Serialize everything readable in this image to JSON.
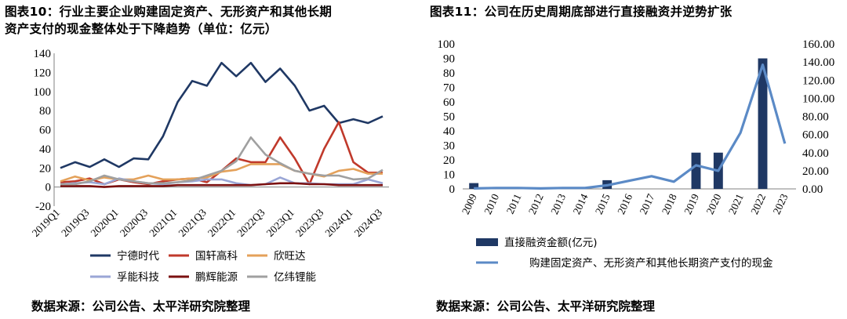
{
  "left": {
    "title_line1": "图表10：行业主要企业购建固定资产、无形资产和其他长期",
    "title_line2": "资产支付的现金整体处于下降趋势（单位：亿元）",
    "source": "数据来源：公司公告、太平洋研究院整理"
  },
  "right": {
    "title": "图表11：公司在历史周期底部进行直接融资并逆势扩张",
    "source": "数据来源：公司公告、太平洋研究院整理"
  },
  "colors": {
    "navy": "#1f3864",
    "red": "#c0392b",
    "orange": "#e4a15a",
    "lavender": "#9aa6d6",
    "darkred": "#7b1010",
    "gray": "#a0a0a0",
    "bar": "#1f3864",
    "line": "#5b8ac6"
  },
  "chart_data": [
    {
      "type": "line",
      "title": "",
      "xlabel": "",
      "ylabel": "",
      "ylim": [
        -20,
        140
      ],
      "yticks": [
        -20,
        0,
        20,
        40,
        60,
        80,
        100,
        120,
        140
      ],
      "x": [
        "2019Q1",
        "2019Q2",
        "2019Q3",
        "2019Q4",
        "2020Q1",
        "2020Q2",
        "2020Q3",
        "2020Q4",
        "2021Q1",
        "2021Q2",
        "2021Q3",
        "2021Q4",
        "2022Q1",
        "2022Q2",
        "2022Q3",
        "2022Q4",
        "2023Q1",
        "2023Q2",
        "2023Q3",
        "2023Q4",
        "2024Q1",
        "2024Q2",
        "2024Q3"
      ],
      "xtick_labels": [
        "2019Q1",
        "2019Q3",
        "2020Q1",
        "2020Q3",
        "2021Q1",
        "2021Q3",
        "2022Q1",
        "2022Q3",
        "2023Q1",
        "2023Q3",
        "2024Q1",
        "2024Q3"
      ],
      "legend_position": "bottom",
      "series": [
        {
          "name": "宁德时代",
          "color": "navy",
          "values": [
            20,
            26,
            21,
            29,
            21,
            30,
            29,
            53,
            89,
            111,
            106,
            130,
            116,
            130,
            110,
            124,
            106,
            80,
            85,
            67,
            71,
            67,
            74
          ]
        },
        {
          "name": "国轩高科",
          "color": "red",
          "values": [
            5,
            6,
            9,
            3,
            8,
            5,
            3,
            6,
            8,
            9,
            5,
            17,
            30,
            26,
            26,
            52,
            30,
            3,
            40,
            68,
            26,
            15,
            15
          ]
        },
        {
          "name": "欣旺达",
          "color": "orange",
          "values": [
            6,
            11,
            7,
            10,
            8,
            8,
            12,
            8,
            8,
            9,
            10,
            16,
            18,
            24,
            24,
            24,
            17,
            14,
            11,
            17,
            19,
            14,
            14
          ]
        },
        {
          "name": "孚能科技",
          "color": "lavender",
          "values": [
            3,
            4,
            5,
            3,
            9,
            6,
            4,
            3,
            5,
            6,
            8,
            8,
            4,
            2,
            3,
            10,
            4,
            4,
            3,
            3,
            3,
            8,
            4
          ]
        },
        {
          "name": "鹏辉能源",
          "color": "darkred",
          "values": [
            1,
            1,
            1,
            0,
            1,
            1,
            1,
            1,
            2,
            2,
            2,
            2,
            2,
            2,
            3,
            4,
            4,
            3,
            3,
            2,
            2,
            2,
            2
          ]
        },
        {
          "name": "亿纬锂能",
          "color": "gray",
          "values": [
            3,
            3,
            6,
            12,
            8,
            6,
            4,
            4,
            5,
            7,
            12,
            17,
            27,
            52,
            34,
            25,
            17,
            14,
            12,
            12,
            8,
            9,
            18
          ]
        }
      ]
    },
    {
      "type": "bar",
      "title": "",
      "categories": [
        "2009",
        "2010",
        "2011",
        "2012",
        "2013",
        "2014",
        "2015",
        "2016",
        "2017",
        "2018",
        "2019",
        "2020",
        "2021",
        "2022",
        "2023"
      ],
      "ylim_left": [
        0,
        100
      ],
      "yticks_left": [
        0,
        10,
        20,
        30,
        40,
        50,
        60,
        70,
        80,
        90,
        100
      ],
      "ylim_right": [
        0,
        160
      ],
      "yticks_right": [
        "0.00",
        "20.00",
        "40.00",
        "60.00",
        "80.00",
        "100.00",
        "120.00",
        "140.00",
        "160.00"
      ],
      "legend_position": "bottom",
      "series": [
        {
          "name": "直接融资金额(亿元)",
          "type": "bar",
          "axis": "left",
          "values": [
            4,
            0,
            0,
            0,
            0,
            0,
            6,
            0,
            0,
            0,
            25,
            25,
            0,
            90,
            0
          ]
        },
        {
          "name": "购建固定资产、无形资产和其他长期资产支付的现金",
          "type": "line",
          "axis": "right",
          "values": [
            0.5,
            1.0,
            1.0,
            0.5,
            1.0,
            1.0,
            4.0,
            9.0,
            14.0,
            8.0,
            26.0,
            20.0,
            62.0,
            137.0,
            50.0
          ]
        }
      ]
    }
  ]
}
